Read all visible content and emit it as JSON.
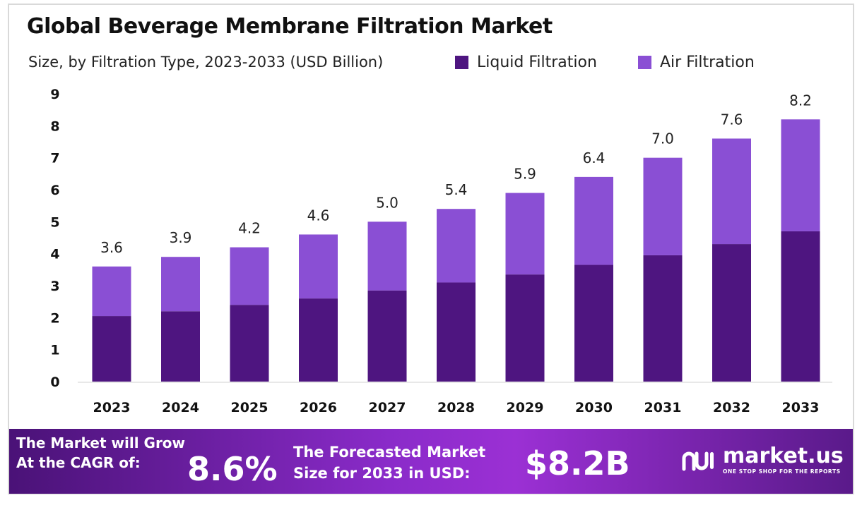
{
  "header": {
    "title": "Global Beverage Membrane Filtration Market",
    "subtitle": "Size, by Filtration Type, 2023-2033 (USD Billion)"
  },
  "colors": {
    "liquid": "#4e1580",
    "air": "#8a4fd4",
    "axis_text": "#111111"
  },
  "chart_data": {
    "type": "bar",
    "stacked": true,
    "categories": [
      "2023",
      "2024",
      "2025",
      "2026",
      "2027",
      "2028",
      "2029",
      "2030",
      "2031",
      "2032",
      "2033"
    ],
    "series": [
      {
        "name": "Liquid Filtration",
        "values": [
          2.05,
          2.2,
          2.4,
          2.6,
          2.85,
          3.1,
          3.35,
          3.65,
          3.95,
          4.3,
          4.7
        ]
      },
      {
        "name": "Air Filtration",
        "values": [
          1.55,
          1.7,
          1.8,
          2.0,
          2.15,
          2.3,
          2.55,
          2.75,
          3.05,
          3.3,
          3.5
        ]
      }
    ],
    "totals": [
      "3.6",
      "3.9",
      "4.2",
      "4.6",
      "5.0",
      "5.4",
      "5.9",
      "6.4",
      "7.0",
      "7.6",
      "8.2"
    ],
    "yticks": [
      "0",
      "1",
      "2",
      "3",
      "4",
      "5",
      "6",
      "7",
      "8",
      "9"
    ],
    "ylim": [
      0,
      9
    ],
    "grid": false,
    "legend": "top-right"
  },
  "banner": {
    "cagr_line1": "The Market will Grow",
    "cagr_line2": "At the CAGR of:",
    "cagr_value": "8.6%",
    "forecast_line1": "The Forecasted Market",
    "forecast_line2": "Size for 2033 in USD:",
    "forecast_value": "$8.2B",
    "brand_name": "market.us",
    "brand_tagline": "ONE STOP SHOP FOR THE REPORTS",
    "brand_icon": "market-us-logo-icon"
  }
}
